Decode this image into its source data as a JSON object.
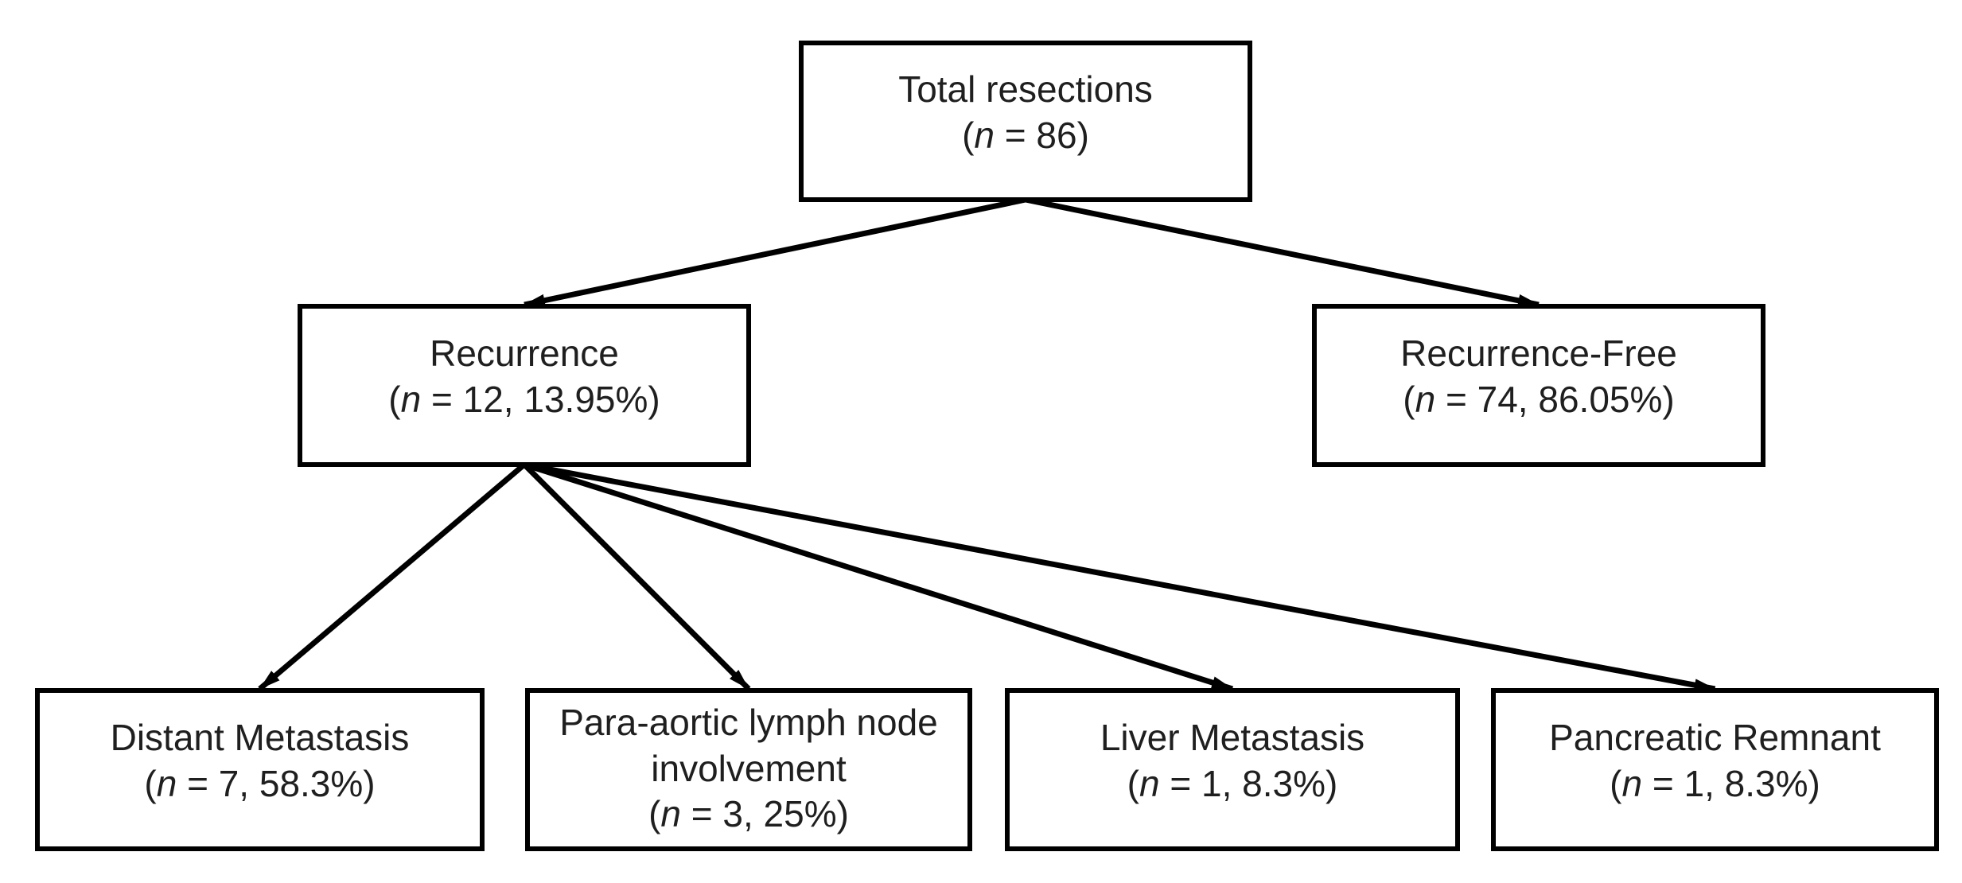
{
  "figure": {
    "type": "flowchart",
    "background": "#ffffff",
    "colors": {
      "line": "#000000",
      "text": "#1f1f1f"
    },
    "nodes": [
      {
        "id": "total",
        "label": "Total resections",
        "stat": "(n = 86)"
      },
      {
        "id": "recurrence",
        "label": "Recurrence",
        "stat": "(n = 12, 13.95%)"
      },
      {
        "id": "recurrence-free",
        "label": "Recurrence-Free",
        "stat": "(n = 74, 86.05%)"
      },
      {
        "id": "distant-metastasis",
        "label": "Distant Metastasis",
        "stat": "(n = 7, 58.3%)"
      },
      {
        "id": "para-aortic",
        "label": "Para-aortic lymph node involvement",
        "stat": "(n = 3, 25%)"
      },
      {
        "id": "liver-metastasis",
        "label": "Liver Metastasis",
        "stat": "(n = 1, 8.3%)"
      },
      {
        "id": "pancreatic-remnant",
        "label": "Pancreatic Remnant",
        "stat": "(n = 1, 8.3%)"
      }
    ],
    "edges": [
      {
        "from": "total",
        "to": "recurrence"
      },
      {
        "from": "total",
        "to": "recurrence-free"
      },
      {
        "from": "recurrence",
        "to": "distant-metastasis"
      },
      {
        "from": "recurrence",
        "to": "para-aortic"
      },
      {
        "from": "recurrence",
        "to": "liver-metastasis"
      },
      {
        "from": "recurrence",
        "to": "pancreatic-remnant"
      }
    ]
  }
}
